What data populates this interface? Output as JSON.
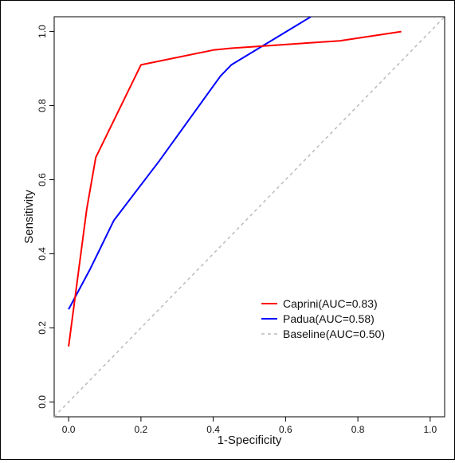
{
  "chart_data": {
    "type": "line",
    "xlabel": "1-Specificity",
    "ylabel": "Sensitivity",
    "xlim": [
      -0.04,
      1.04
    ],
    "ylim": [
      -0.04,
      1.04
    ],
    "x_ticks": [
      0.0,
      0.2,
      0.4,
      0.6,
      0.8,
      1.0
    ],
    "x_tick_labels": [
      "0.0",
      "0.2",
      "0.4",
      "0.6",
      "0.8",
      "1.0"
    ],
    "y_ticks": [
      0.0,
      0.2,
      0.4,
      0.6,
      0.8,
      1.0
    ],
    "y_tick_labels": [
      "0.0",
      "0.2",
      "0.4",
      "0.6",
      "0.8",
      "1.0"
    ],
    "grid": false,
    "legend_position": "bottom-right",
    "series": [
      {
        "name": "Caprini(AUC=0.83)",
        "color": "#ff0000",
        "dash": "solid",
        "x": [
          0.0,
          0.05,
          0.075,
          0.2,
          0.4,
          0.45,
          0.75,
          0.92
        ],
        "y": [
          0.15,
          0.52,
          0.66,
          0.91,
          0.95,
          0.955,
          0.975,
          1.0
        ]
      },
      {
        "name": "Padua(AUC=0.58)",
        "color": "#0000ff",
        "dash": "solid",
        "x": [
          0.0,
          0.06,
          0.125,
          0.25,
          0.42,
          0.45,
          0.67
        ],
        "y": [
          0.25,
          0.36,
          0.49,
          0.65,
          0.88,
          0.91,
          1.04
        ]
      },
      {
        "name": "Baseline(AUC=0.50)",
        "color": "#bbbbbb",
        "dash": "dashed",
        "x": [
          -0.04,
          1.04
        ],
        "y": [
          -0.04,
          1.04
        ]
      }
    ]
  }
}
